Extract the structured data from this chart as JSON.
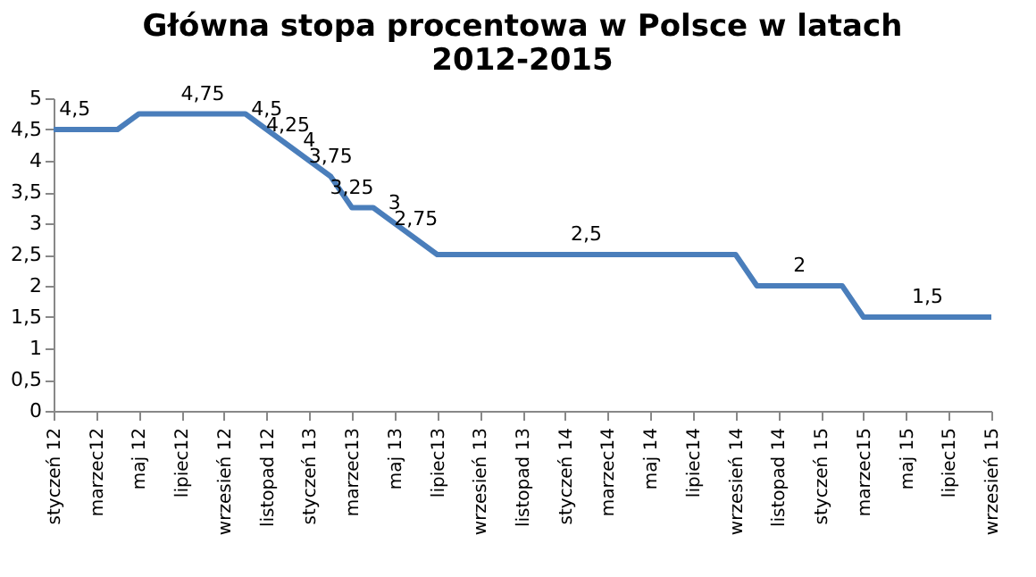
{
  "chart_data": {
    "type": "line",
    "title": [
      "Główna stopa procentowa w Polsce w latach",
      "2012-2015"
    ],
    "categories": [
      "styczeń 12",
      null,
      "marzec12",
      null,
      "maj 12",
      null,
      "lipiec12",
      null,
      "wrzesień 12",
      null,
      "listopad 12",
      null,
      "styczeń 13",
      null,
      "marzec13",
      null,
      "maj 13",
      null,
      "lipiec13",
      null,
      "wrzesień 13",
      null,
      "listopad 13",
      null,
      "styczeń 14",
      null,
      "marzec14",
      null,
      "maj 14",
      null,
      "lipiec14",
      null,
      "wrzesień 14",
      null,
      "listopad 14",
      null,
      "styczeń 15",
      null,
      "marzec15",
      null,
      "maj 15",
      null,
      "lipiec15",
      null,
      "wrzesień 15"
    ],
    "series": [
      {
        "color": "#4a7ebb",
        "values": [
          4.5,
          4.5,
          4.5,
          4.5,
          4.75,
          4.75,
          4.75,
          4.75,
          4.75,
          4.75,
          4.5,
          4.25,
          4.0,
          3.75,
          3.25,
          3.25,
          3.0,
          2.75,
          2.5,
          2.5,
          2.5,
          2.5,
          2.5,
          2.5,
          2.5,
          2.5,
          2.5,
          2.5,
          2.5,
          2.5,
          2.5,
          2.5,
          2.5,
          2.0,
          2.0,
          2.0,
          2.0,
          2.0,
          1.5,
          1.5,
          1.5,
          1.5,
          1.5,
          1.5,
          1.5
        ],
        "value_labels": [
          null,
          "4,5",
          null,
          null,
          null,
          null,
          null,
          "4,75",
          null,
          null,
          "4,5",
          "4,25",
          "4",
          "3,75",
          "3,25",
          null,
          "3",
          "2,75",
          null,
          null,
          null,
          null,
          null,
          null,
          null,
          "2,5",
          null,
          null,
          null,
          null,
          null,
          null,
          null,
          null,
          null,
          "2",
          null,
          null,
          null,
          null,
          null,
          "1,5",
          null,
          null,
          null
        ]
      }
    ],
    "ylim": [
      0,
      5
    ],
    "yticks": [
      0,
      {
        "value": 0.5,
        "label": "0,5"
      },
      1,
      {
        "value": 1.5,
        "label": "1,5"
      },
      2,
      {
        "value": 2.5,
        "label": "2,5"
      },
      3,
      {
        "value": 3.5,
        "label": "3,5"
      },
      4,
      {
        "value": 4.5,
        "label": "4,5"
      },
      5
    ],
    "grid": false,
    "marker": "none",
    "line_style": "solid"
  }
}
